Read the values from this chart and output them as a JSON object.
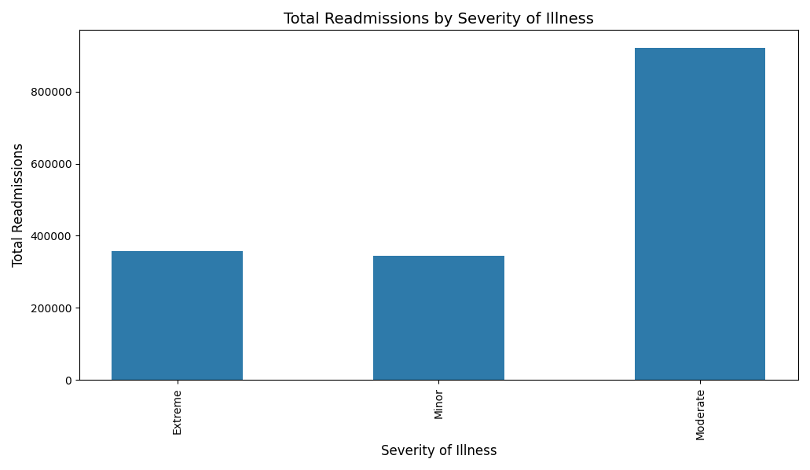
{
  "categories": [
    "Extreme",
    "Minor",
    "Moderate"
  ],
  "values": [
    358000,
    344000,
    921000
  ],
  "bar_color": "#2e7aaa",
  "title": "Total Readmissions by Severity of Illness",
  "xlabel": "Severity of Illness",
  "ylabel": "Total Readmissions",
  "yticks": [
    0,
    200000,
    400000,
    600000,
    800000
  ],
  "ylim": [
    0,
    970000
  ],
  "title_fontsize": 14,
  "label_fontsize": 12,
  "tick_fontsize": 10,
  "figsize": [
    10.31,
    5.99
  ],
  "dpi": 100
}
